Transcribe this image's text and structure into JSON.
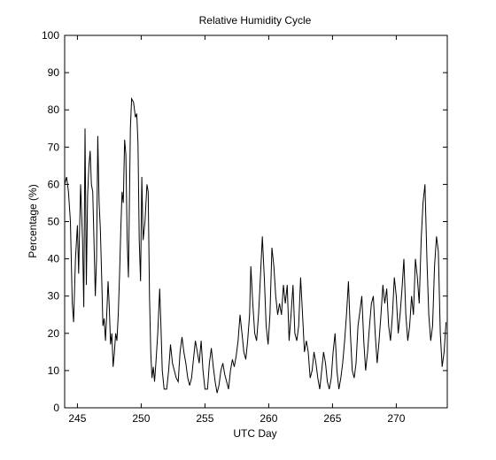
{
  "chart_data": {
    "type": "line",
    "title": "Relative Humidity Cycle",
    "xlabel": "UTC Day",
    "ylabel": "Percentage (%)",
    "xlim": [
      244,
      274
    ],
    "ylim": [
      0,
      100
    ],
    "xticks": [
      245,
      250,
      255,
      260,
      265,
      270
    ],
    "yticks": [
      0,
      10,
      20,
      30,
      40,
      50,
      60,
      70,
      80,
      90,
      100
    ],
    "grid": false,
    "legend": "none",
    "series": [
      {
        "color": "#000000",
        "points": [
          [
            244.0,
            60
          ],
          [
            244.15,
            62
          ],
          [
            244.3,
            58
          ],
          [
            244.45,
            50
          ],
          [
            244.6,
            28
          ],
          [
            244.7,
            23
          ],
          [
            244.85,
            40
          ],
          [
            245.0,
            49
          ],
          [
            245.1,
            36
          ],
          [
            245.25,
            60
          ],
          [
            245.4,
            45
          ],
          [
            245.5,
            27
          ],
          [
            245.6,
            75
          ],
          [
            245.7,
            33
          ],
          [
            245.8,
            57
          ],
          [
            245.9,
            65
          ],
          [
            246.0,
            69
          ],
          [
            246.1,
            60
          ],
          [
            246.2,
            58
          ],
          [
            246.3,
            45
          ],
          [
            246.4,
            30
          ],
          [
            246.5,
            40
          ],
          [
            246.6,
            73
          ],
          [
            246.7,
            55
          ],
          [
            246.8,
            48
          ],
          [
            246.9,
            35
          ],
          [
            247.0,
            22
          ],
          [
            247.1,
            24
          ],
          [
            247.2,
            18
          ],
          [
            247.3,
            25
          ],
          [
            247.4,
            34
          ],
          [
            247.5,
            27
          ],
          [
            247.6,
            17
          ],
          [
            247.7,
            20
          ],
          [
            247.8,
            11
          ],
          [
            247.9,
            15
          ],
          [
            248.0,
            20
          ],
          [
            248.1,
            18
          ],
          [
            248.2,
            25
          ],
          [
            248.3,
            35
          ],
          [
            248.4,
            48
          ],
          [
            248.5,
            58
          ],
          [
            248.6,
            55
          ],
          [
            248.7,
            72
          ],
          [
            248.8,
            68
          ],
          [
            248.9,
            45
          ],
          [
            249.0,
            35
          ],
          [
            249.15,
            75
          ],
          [
            249.25,
            83
          ],
          [
            249.4,
            82
          ],
          [
            249.55,
            78
          ],
          [
            249.65,
            79
          ],
          [
            249.75,
            71
          ],
          [
            249.85,
            45
          ],
          [
            249.95,
            34
          ],
          [
            250.05,
            62
          ],
          [
            250.15,
            45
          ],
          [
            250.3,
            50
          ],
          [
            250.45,
            60
          ],
          [
            250.55,
            58
          ],
          [
            250.65,
            30
          ],
          [
            250.75,
            15
          ],
          [
            250.85,
            8
          ],
          [
            250.95,
            11
          ],
          [
            251.05,
            7
          ],
          [
            251.15,
            12
          ],
          [
            251.3,
            20
          ],
          [
            251.45,
            32
          ],
          [
            251.55,
            22
          ],
          [
            251.65,
            10
          ],
          [
            251.8,
            5
          ],
          [
            252.0,
            5
          ],
          [
            252.15,
            10
          ],
          [
            252.3,
            17
          ],
          [
            252.45,
            12
          ],
          [
            252.6,
            10
          ],
          [
            252.75,
            8
          ],
          [
            252.9,
            7
          ],
          [
            253.05,
            15
          ],
          [
            253.2,
            19
          ],
          [
            253.35,
            15
          ],
          [
            253.5,
            12
          ],
          [
            253.65,
            8
          ],
          [
            253.8,
            6
          ],
          [
            253.95,
            8
          ],
          [
            254.1,
            13
          ],
          [
            254.25,
            18
          ],
          [
            254.4,
            15
          ],
          [
            254.55,
            12
          ],
          [
            254.7,
            18
          ],
          [
            254.85,
            10
          ],
          [
            255.0,
            5
          ],
          [
            255.2,
            5
          ],
          [
            255.35,
            12
          ],
          [
            255.5,
            16
          ],
          [
            255.65,
            11
          ],
          [
            255.8,
            7
          ],
          [
            255.95,
            4
          ],
          [
            256.1,
            6
          ],
          [
            256.25,
            10
          ],
          [
            256.4,
            12
          ],
          [
            256.55,
            9
          ],
          [
            256.7,
            7
          ],
          [
            256.85,
            5
          ],
          [
            257.0,
            10
          ],
          [
            257.15,
            13
          ],
          [
            257.3,
            11
          ],
          [
            257.45,
            14
          ],
          [
            257.6,
            18
          ],
          [
            257.75,
            25
          ],
          [
            257.9,
            20
          ],
          [
            258.05,
            15
          ],
          [
            258.2,
            13
          ],
          [
            258.35,
            18
          ],
          [
            258.5,
            25
          ],
          [
            258.6,
            38
          ],
          [
            258.75,
            28
          ],
          [
            258.9,
            20
          ],
          [
            259.05,
            18
          ],
          [
            259.2,
            25
          ],
          [
            259.35,
            35
          ],
          [
            259.5,
            46
          ],
          [
            259.65,
            35
          ],
          [
            259.8,
            22
          ],
          [
            259.95,
            17
          ],
          [
            260.1,
            25
          ],
          [
            260.25,
            43
          ],
          [
            260.4,
            38
          ],
          [
            260.55,
            30
          ],
          [
            260.7,
            25
          ],
          [
            260.85,
            28
          ],
          [
            261.0,
            25
          ],
          [
            261.15,
            33
          ],
          [
            261.3,
            28
          ],
          [
            261.45,
            33
          ],
          [
            261.6,
            18
          ],
          [
            261.75,
            25
          ],
          [
            261.9,
            33
          ],
          [
            262.05,
            20
          ],
          [
            262.2,
            18
          ],
          [
            262.35,
            22
          ],
          [
            262.5,
            35
          ],
          [
            262.65,
            25
          ],
          [
            262.8,
            15
          ],
          [
            262.95,
            18
          ],
          [
            263.1,
            15
          ],
          [
            263.25,
            8
          ],
          [
            263.4,
            10
          ],
          [
            263.55,
            15
          ],
          [
            263.7,
            12
          ],
          [
            263.85,
            8
          ],
          [
            264.0,
            5
          ],
          [
            264.15,
            10
          ],
          [
            264.3,
            15
          ],
          [
            264.45,
            12
          ],
          [
            264.6,
            7
          ],
          [
            264.75,
            5
          ],
          [
            264.9,
            8
          ],
          [
            265.05,
            15
          ],
          [
            265.2,
            20
          ],
          [
            265.35,
            10
          ],
          [
            265.5,
            5
          ],
          [
            265.65,
            8
          ],
          [
            265.8,
            12
          ],
          [
            265.95,
            18
          ],
          [
            266.1,
            25
          ],
          [
            266.25,
            34
          ],
          [
            266.4,
            20
          ],
          [
            266.55,
            10
          ],
          [
            266.7,
            8
          ],
          [
            266.85,
            12
          ],
          [
            267.0,
            22
          ],
          [
            267.15,
            26
          ],
          [
            267.3,
            30
          ],
          [
            267.45,
            18
          ],
          [
            267.6,
            10
          ],
          [
            267.75,
            15
          ],
          [
            267.9,
            22
          ],
          [
            268.05,
            28
          ],
          [
            268.2,
            30
          ],
          [
            268.35,
            20
          ],
          [
            268.5,
            12
          ],
          [
            268.65,
            18
          ],
          [
            268.8,
            25
          ],
          [
            268.95,
            33
          ],
          [
            269.1,
            28
          ],
          [
            269.25,
            32
          ],
          [
            269.4,
            22
          ],
          [
            269.55,
            18
          ],
          [
            269.7,
            25
          ],
          [
            269.85,
            35
          ],
          [
            270.0,
            30
          ],
          [
            270.15,
            20
          ],
          [
            270.3,
            25
          ],
          [
            270.45,
            32
          ],
          [
            270.6,
            40
          ],
          [
            270.75,
            25
          ],
          [
            270.9,
            18
          ],
          [
            271.05,
            22
          ],
          [
            271.2,
            30
          ],
          [
            271.35,
            25
          ],
          [
            271.5,
            40
          ],
          [
            271.65,
            35
          ],
          [
            271.8,
            28
          ],
          [
            271.95,
            45
          ],
          [
            272.1,
            55
          ],
          [
            272.25,
            60
          ],
          [
            272.4,
            40
          ],
          [
            272.55,
            25
          ],
          [
            272.7,
            18
          ],
          [
            272.85,
            22
          ],
          [
            273.0,
            38
          ],
          [
            273.15,
            46
          ],
          [
            273.3,
            42
          ],
          [
            273.45,
            20
          ],
          [
            273.6,
            11
          ],
          [
            273.75,
            15
          ],
          [
            273.9,
            23
          ]
        ]
      }
    ]
  }
}
